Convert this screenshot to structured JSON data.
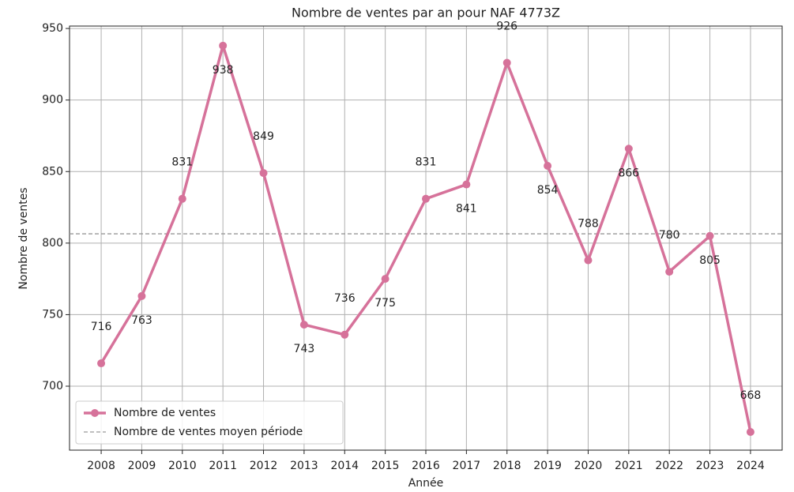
{
  "chart_data": {
    "type": "line",
    "title": "Nombre de ventes par an pour NAF 4773Z",
    "xlabel": "Année",
    "ylabel": "Nombre de ventes",
    "x": [
      2008,
      2009,
      2010,
      2011,
      2012,
      2013,
      2014,
      2015,
      2016,
      2017,
      2018,
      2019,
      2020,
      2021,
      2022,
      2023,
      2024
    ],
    "series": [
      {
        "name": "Nombre de ventes",
        "color": "#d6729a",
        "values": [
          716,
          763,
          831,
          938,
          849,
          743,
          736,
          775,
          831,
          841,
          926,
          854,
          788,
          866,
          780,
          805,
          668
        ]
      }
    ],
    "mean": {
      "name": "Nombre de ventes moyen période",
      "value": 806.5,
      "color": "#999999"
    },
    "xlim": [
      2007.22,
      2024.78
    ],
    "xticks": [
      2008,
      2009,
      2010,
      2011,
      2012,
      2013,
      2014,
      2015,
      2016,
      2017,
      2018,
      2019,
      2020,
      2021,
      2022,
      2023,
      2024
    ],
    "ylim": [
      655.3,
      951.7
    ],
    "yticks": [
      700,
      750,
      800,
      850,
      900,
      950
    ],
    "grid": true,
    "legend": "lower left",
    "data_labels": true
  }
}
